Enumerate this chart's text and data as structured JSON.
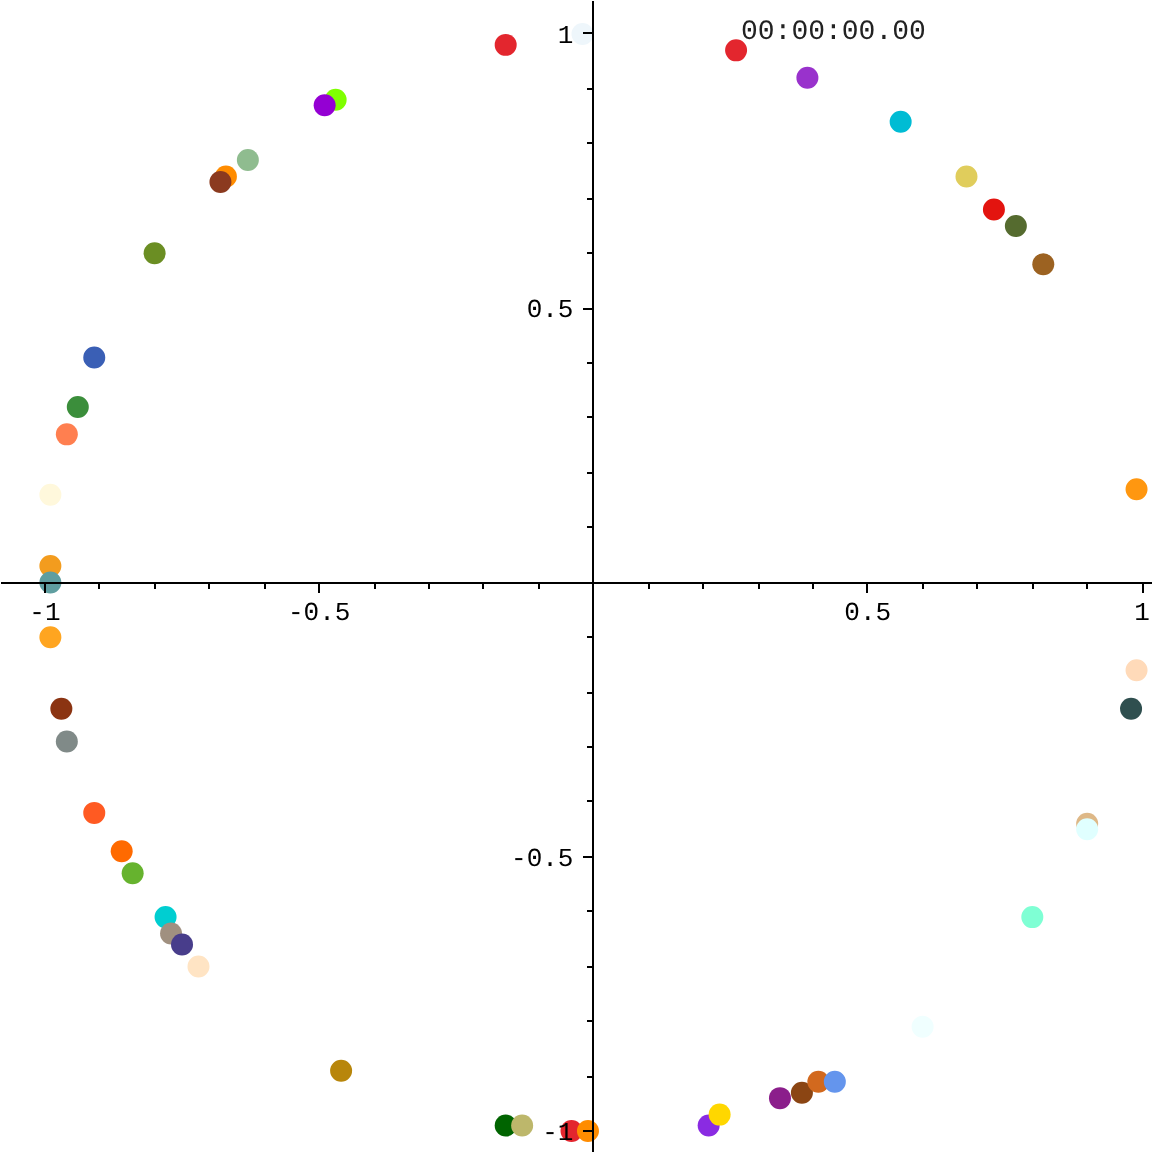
{
  "chart_data": {
    "type": "scatter",
    "marker": "circle",
    "grid": false,
    "annotations": [
      "00:00:00.00"
    ],
    "xlim": [
      -1.08,
      1.02
    ],
    "ylim": [
      -1.04,
      1.06
    ],
    "xticks": [
      -1,
      -0.5,
      0.5,
      1
    ],
    "yticks": [
      -1,
      -0.5,
      0.5,
      1
    ],
    "series": [
      {
        "x": [
          -0.16,
          -0.02,
          -0.47,
          -0.49,
          -0.63,
          -0.67,
          -0.68,
          -0.8,
          -0.91,
          -0.94,
          -0.96,
          -0.99,
          -0.99,
          -0.99,
          0.26,
          0.39,
          0.56,
          0.68,
          0.73,
          0.77,
          0.82,
          0.99,
          -0.99,
          -0.97,
          -0.96,
          -0.91,
          -0.86,
          -0.84,
          -0.78,
          -0.77,
          -0.75,
          -0.72,
          -0.46,
          -0.16,
          -0.13,
          -0.04,
          -0.01,
          0.21,
          0.23,
          0.34,
          0.38,
          0.41,
          0.44,
          0.6,
          0.8,
          0.9,
          0.9,
          0.98,
          0.99
        ],
        "values": [
          0.98,
          1.0,
          0.88,
          0.87,
          0.77,
          0.74,
          0.73,
          0.6,
          0.41,
          0.32,
          0.27,
          0.16,
          0.03,
          0.0,
          0.97,
          0.92,
          0.84,
          0.74,
          0.68,
          0.65,
          0.58,
          0.17,
          -0.1,
          -0.23,
          -0.29,
          -0.42,
          -0.49,
          -0.53,
          -0.61,
          -0.64,
          -0.66,
          -0.7,
          -0.89,
          -0.99,
          -0.99,
          -1.0,
          -1.0,
          -0.99,
          -0.97,
          -0.94,
          -0.93,
          -0.91,
          -0.91,
          -0.81,
          -0.61,
          -0.44,
          -0.45,
          -0.23,
          -0.16
        ],
        "colors": [
          "#e3262e",
          "#eef6fb",
          "#7fff00",
          "#9400d3",
          "#8fbc8f",
          "#ff8c00",
          "#8b3a1f",
          "#6b8e23",
          "#3a5fb5",
          "#3b8e3b",
          "#ff7f50",
          "#fff8dc",
          "#f39c1e",
          "#5f9ea0",
          "#e3262e",
          "#9932cc",
          "#00bcd4",
          "#e0cd5c",
          "#e3140f",
          "#556b2f",
          "#9c6221",
          "#ff9710",
          "#ffa520",
          "#8b3412",
          "#808a88",
          "#ff5a22",
          "#ff6a00",
          "#66b32e",
          "#00ced1",
          "#a09080",
          "#483d8b",
          "#ffe4c4",
          "#b8860b",
          "#006400",
          "#bdb76b",
          "#e3262e",
          "#ff8c00",
          "#8a2be2",
          "#ffd700",
          "#8b1e8b",
          "#8b4513",
          "#d2691e",
          "#6495ed",
          "#f0ffff",
          "#7fffd4",
          "#deb887",
          "#e0ffff",
          "#2f4f4f",
          "#ffdab9"
        ]
      }
    ]
  }
}
